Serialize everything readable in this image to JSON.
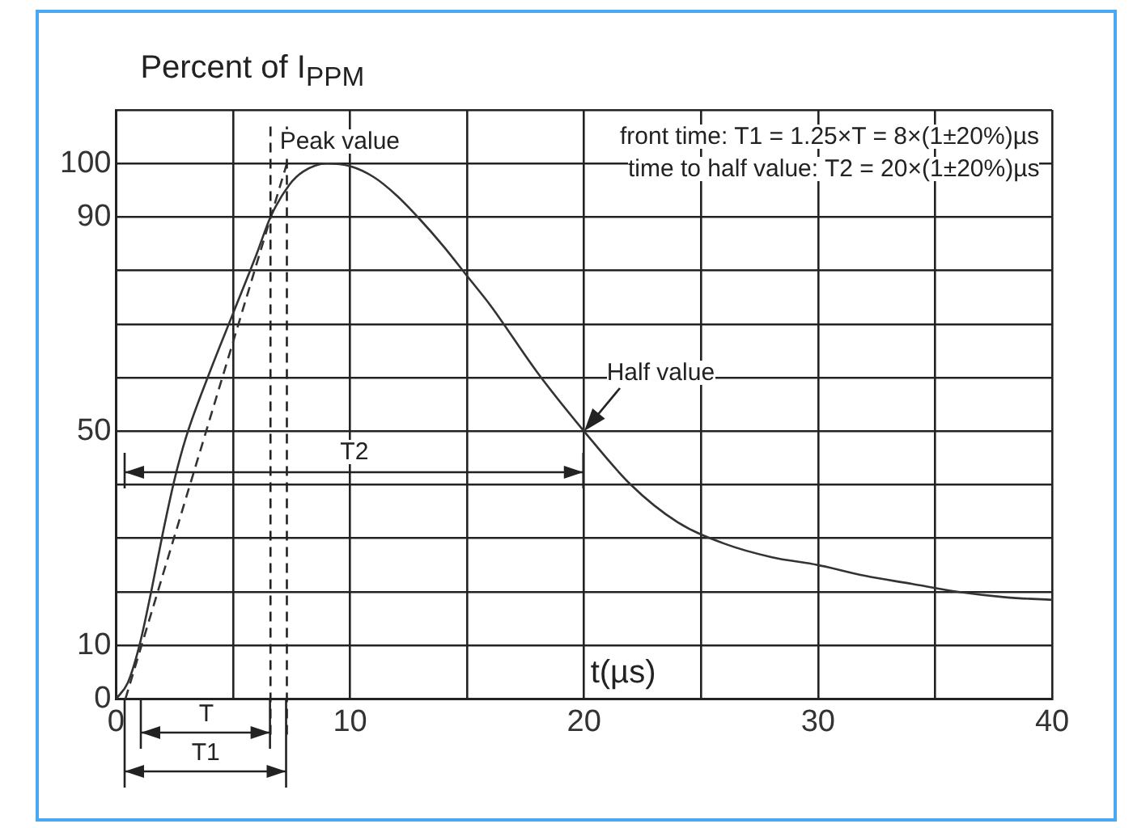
{
  "chart_data": {
    "type": "line",
    "ylabel": "Percent of I$_{PPM}$",
    "xlabel": "t(µs)",
    "x": [
      0,
      0.5,
      1,
      1.5,
      2,
      2.5,
      3,
      4,
      5,
      6,
      6.6,
      7.4,
      8,
      9,
      10,
      11,
      12,
      13,
      14,
      15,
      16,
      18,
      20,
      22,
      24,
      26,
      28,
      30,
      32,
      34,
      36,
      38,
      40
    ],
    "series": [
      {
        "color": "#333333",
        "values": [
          0,
          3,
          10,
          20,
          31,
          41,
          49,
          61,
          72,
          83,
          90,
          96,
          98.5,
          100,
          99.5,
          97.5,
          94,
          89.5,
          84.5,
          79,
          73.5,
          61,
          50,
          40,
          33,
          29,
          26.5,
          25,
          23,
          21.5,
          20,
          19,
          18.5
        ]
      },
      {
        "color": "#333333",
        "x": [
          0.4,
          7.3
        ],
        "values": [
          0,
          100
        ],
        "line_style": "dashed"
      }
    ],
    "xlim": [
      0,
      40
    ],
    "xticks": [
      0,
      {
        "value": 5,
        "label": null
      },
      10,
      {
        "value": 15,
        "label": null
      },
      20,
      {
        "value": 25,
        "label": null
      },
      30,
      {
        "value": 35,
        "label": null
      },
      40
    ],
    "ylim": [
      0,
      110
    ],
    "yticks": [
      0,
      10,
      {
        "value": 20,
        "label": null
      },
      {
        "value": 30,
        "label": null
      },
      {
        "value": 40,
        "label": null
      },
      50,
      {
        "value": 60,
        "label": null
      },
      {
        "value": 70,
        "label": null
      },
      {
        "value": 80,
        "label": null
      },
      90,
      100,
      {
        "value": 110,
        "label": null
      }
    ],
    "grid": true,
    "legend": false,
    "ref_lines": [
      {
        "axis": "x",
        "value": 6.6,
        "line_style": "dashed"
      },
      {
        "axis": "x",
        "value": 7.3,
        "line_style": "dashed"
      }
    ],
    "annotations": [
      "front time: T1 = 1.25×T = 8×(1±20%)µs",
      "time to half value: T2 = 20×(1±20%)µs",
      {
        "text": "Peak value",
        "x": 9,
        "y": 100
      },
      {
        "text": "Half value",
        "x": 20,
        "y": 50
      },
      "T",
      "T1",
      "T2"
    ]
  }
}
